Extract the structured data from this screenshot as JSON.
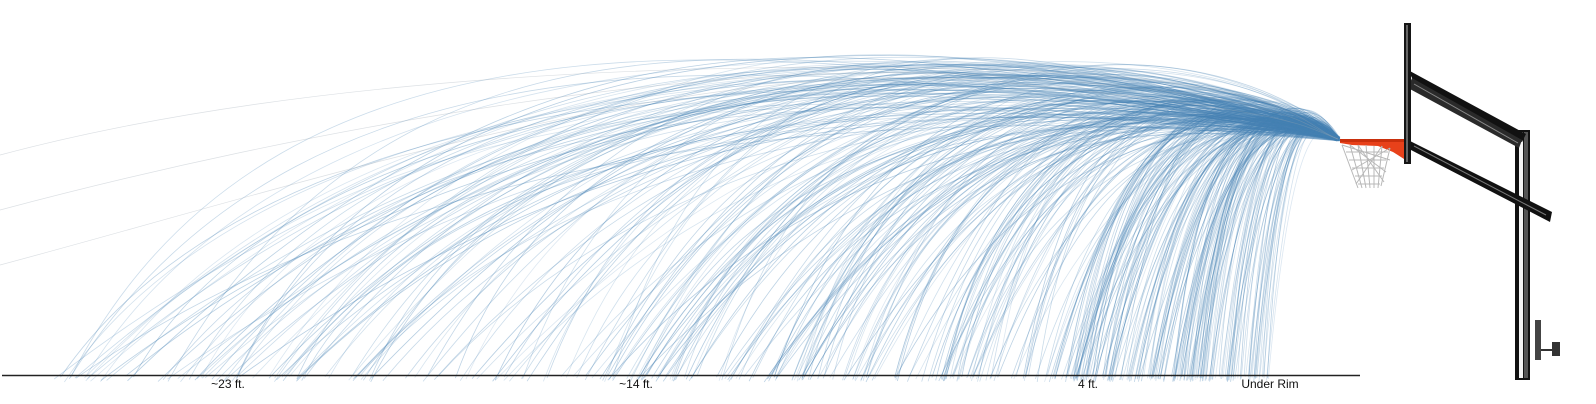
{
  "chart_data": {
    "type": "line",
    "title": "",
    "xlabel": "",
    "ylabel": "",
    "description_units": "x = distance from hoop (ft)",
    "tick_labels": [
      {
        "label": "~23 ft.",
        "value": 23
      },
      {
        "label": "~14 ft.",
        "value": 14
      },
      {
        "label": "4 ft.",
        "value": 4
      },
      {
        "label": "Under Rim",
        "value": 0
      }
    ],
    "series_count": 460,
    "grid": false,
    "legend": "none"
  },
  "colors": {
    "trajectory": "#4682b4",
    "axis": "#222222",
    "rim": "#e8411a",
    "pole": "#111111",
    "net": "#bbbbbb"
  },
  "icons": [
    "basketball-hoop-icon"
  ]
}
